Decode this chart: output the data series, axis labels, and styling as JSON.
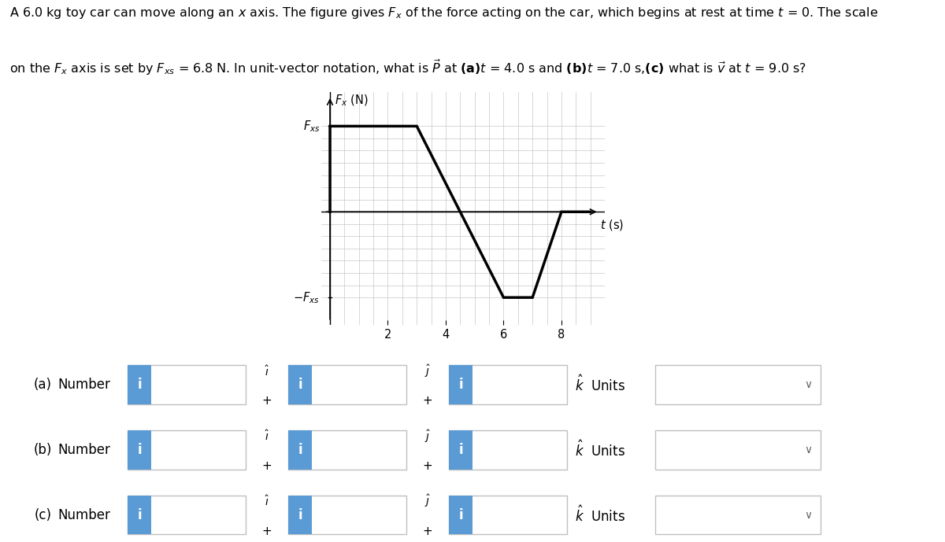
{
  "fxs": 6.8,
  "bg_color": "#ffffff",
  "grid_color": "#c8c8c8",
  "line_color": "#000000",
  "blue_color": "#5b9bd5",
  "graph_t": [
    0,
    0,
    3,
    6,
    7,
    8,
    9
  ],
  "graph_f": [
    0,
    6.8,
    6.8,
    -6.8,
    -6.8,
    0,
    0
  ],
  "ylim": [
    -9.0,
    9.5
  ],
  "xlim": [
    -0.3,
    9.5
  ],
  "xticks": [
    2,
    4,
    6,
    8
  ],
  "row_labels": [
    "(a)",
    "(b)",
    "(c)"
  ],
  "blue": "#5b9bd5",
  "light_border": "#c0c0c0"
}
